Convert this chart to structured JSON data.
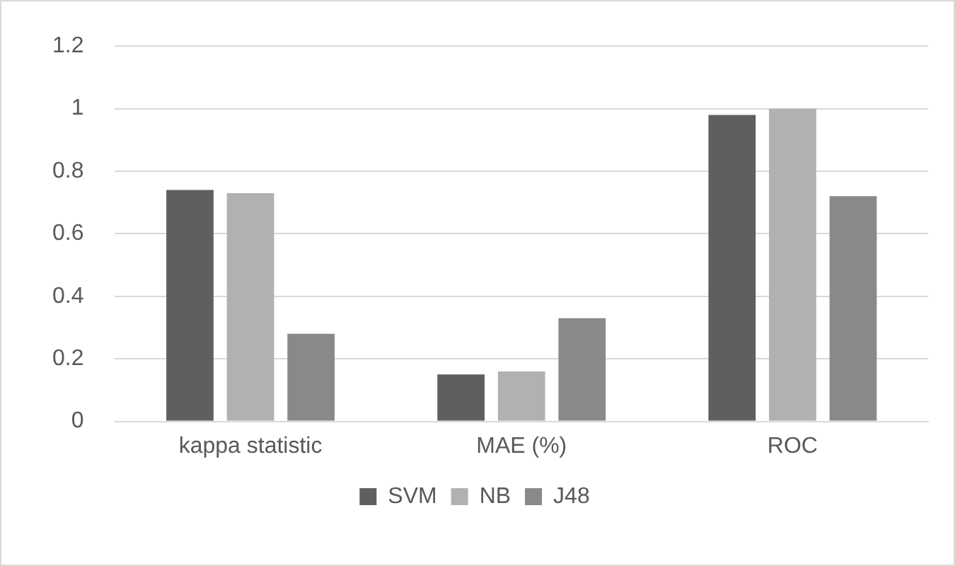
{
  "chart_data": {
    "type": "bar",
    "categories": [
      "kappa statistic",
      "MAE (%)",
      "ROC"
    ],
    "series": [
      {
        "name": "SVM",
        "color": "#5f5f5f",
        "values": [
          0.74,
          0.15,
          0.98
        ]
      },
      {
        "name": "NB",
        "color": "#b1b1b1",
        "values": [
          0.73,
          0.16,
          1.0
        ]
      },
      {
        "name": "J48",
        "color": "#898989",
        "values": [
          0.28,
          0.33,
          0.72
        ]
      }
    ],
    "ylim": [
      0,
      1.2
    ],
    "yticks": [
      0,
      {
        "value": 0.2,
        "label": "0.2"
      },
      {
        "value": 0.4,
        "label": "0.4"
      },
      {
        "value": 0.6,
        "label": "0.6"
      },
      {
        "value": 0.8,
        "label": "0.8"
      },
      1,
      {
        "value": 1.2,
        "label": "1.2"
      }
    ],
    "grid": "y",
    "legend": "bottom"
  }
}
